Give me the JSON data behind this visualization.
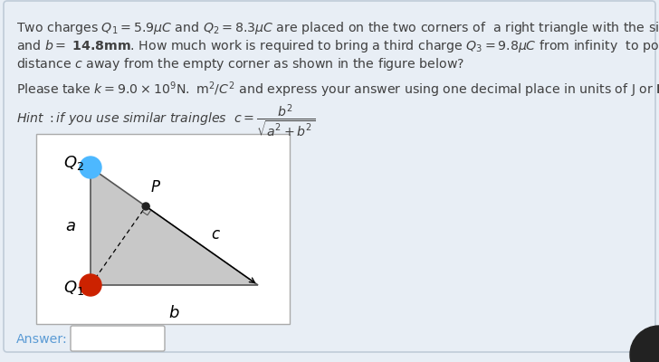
{
  "bg_color": "#e8eef5",
  "panel_bg": "#dde6f0",
  "white_box_color": "#f0f4f8",
  "fig_box_color": "#ffffff",
  "text_color": "#404040",
  "answer_color": "#5b9bd5",
  "Q1_color": "#cc2200",
  "Q2_color": "#4db8ff",
  "P_color": "#222222",
  "triangle_fill": "#c8c8c8",
  "triangle_edge": "#555555"
}
